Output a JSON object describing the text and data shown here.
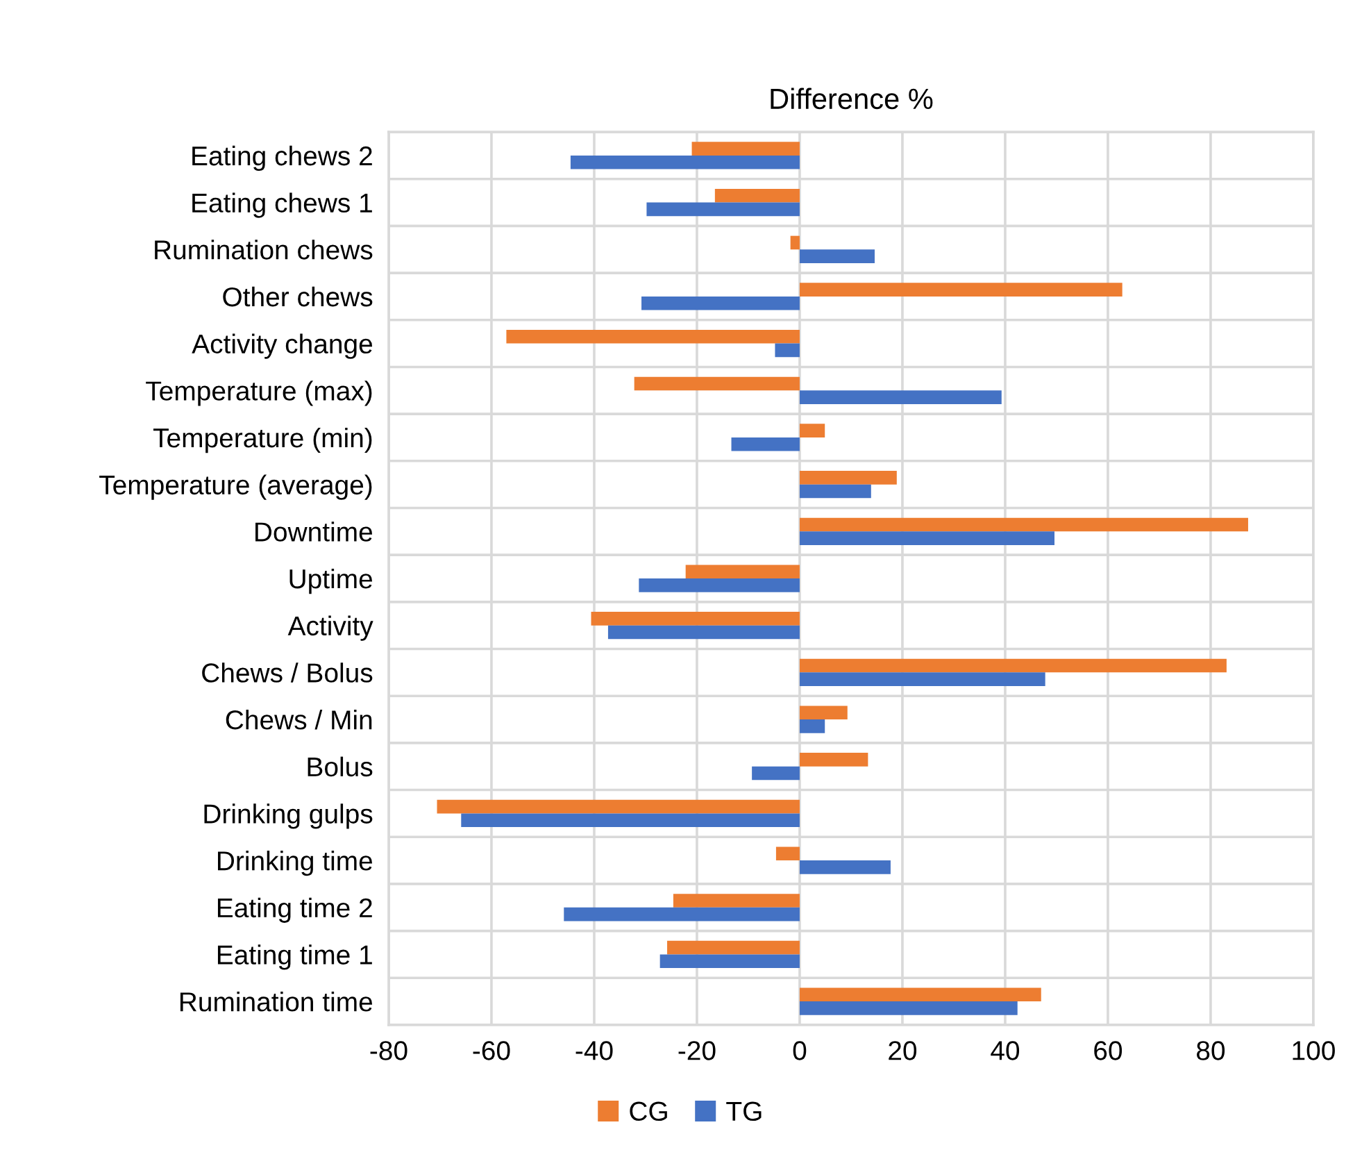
{
  "chart_data": {
    "type": "bar",
    "orientation": "horizontal",
    "title": "Difference %",
    "categories": [
      "Eating chews 2",
      "Eating chews 1",
      "Rumination chews",
      "Other chews",
      "Activity change",
      "Temperature (max)",
      "Temperature (min)",
      "Temperature (average)",
      "Downtime",
      "Uptime",
      "Activity",
      "Chews / Bolus",
      "Chews / Min",
      "Bolus",
      "Drinking gulps",
      "Drinking time",
      "Eating time 2",
      "Eating time 1",
      "Rumination time"
    ],
    "series": [
      {
        "name": "CG",
        "color": "#ed7d31",
        "values": [
          -21.0,
          -16.5,
          -1.8,
          62.8,
          -57.1,
          -32.2,
          4.9,
          18.9,
          87.3,
          -22.2,
          -40.6,
          83.1,
          9.3,
          13.3,
          -70.6,
          -4.6,
          -24.6,
          -25.8,
          47.0
        ]
      },
      {
        "name": "TG",
        "color": "#4472c4",
        "values": [
          -44.6,
          -29.8,
          14.6,
          -30.8,
          -4.8,
          39.3,
          -13.3,
          13.9,
          49.6,
          -31.3,
          -37.3,
          47.8,
          4.9,
          -9.3,
          -65.9,
          17.7,
          -45.9,
          -27.2,
          42.4
        ]
      }
    ],
    "xlim": [
      -80,
      100
    ],
    "xticks": [
      -80,
      -60,
      -40,
      -20,
      0,
      20,
      40,
      60,
      80,
      100
    ],
    "grid": true,
    "legend": "bottom"
  }
}
